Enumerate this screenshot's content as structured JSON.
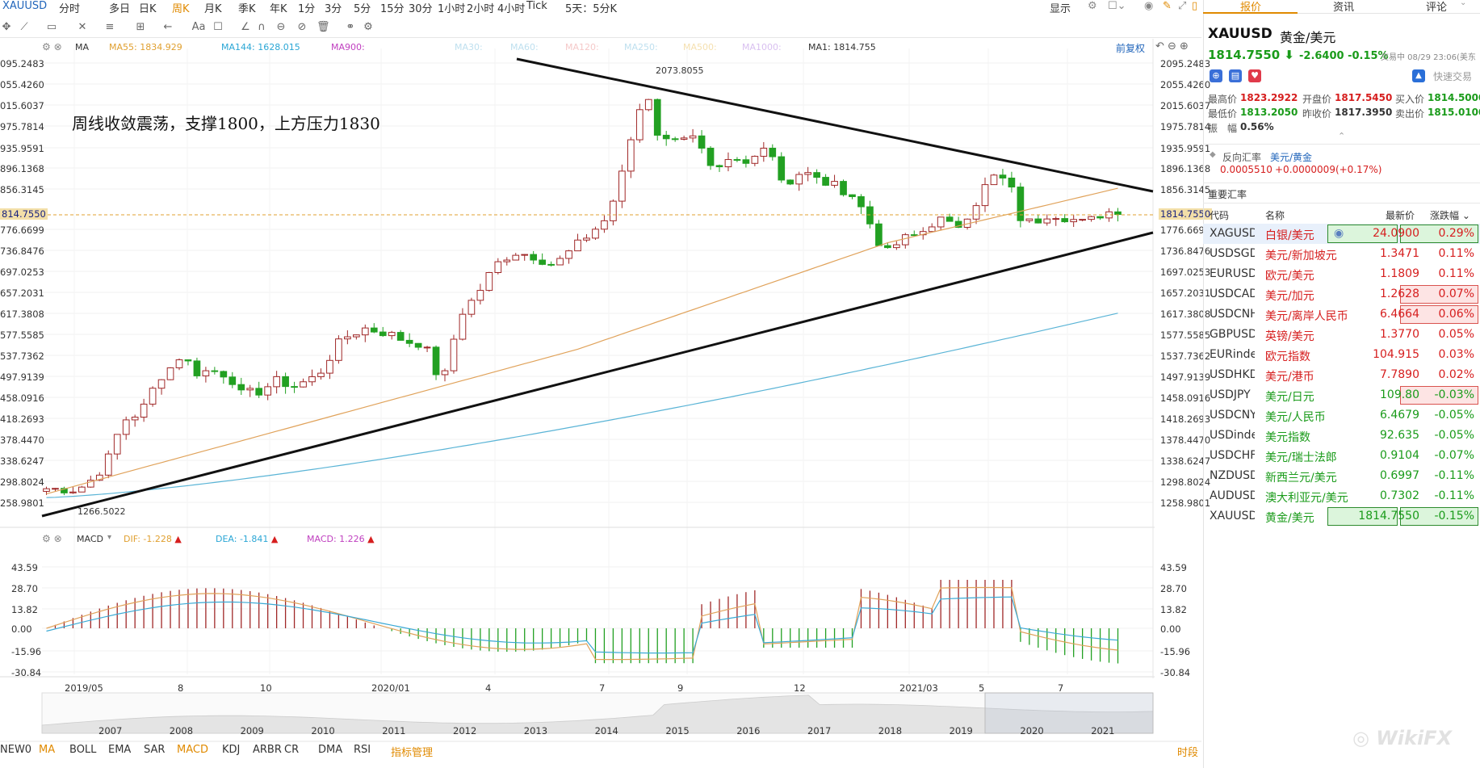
{
  "toolbar": {
    "symbol": "XAUUSD",
    "periods": [
      "分时",
      "多日",
      "日K",
      "周K",
      "月K",
      "季K",
      "年K",
      "1分",
      "3分",
      "5分",
      "15分",
      "30分",
      "1小时",
      "2小时",
      "4小时",
      "Tick",
      "5天：5分K"
    ],
    "active_period": "周K",
    "display_label": "显示"
  },
  "main_chart": {
    "indicator": "MA",
    "ma_legend": [
      {
        "label": "MA55: 1834.929",
        "color": "#e0a030"
      },
      {
        "label": "MA144: 1628.015",
        "color": "#2aa6d5"
      },
      {
        "label": "MA900:",
        "color": "#c040c0"
      },
      {
        "label": "MA30:",
        "color": "#bfe0ef"
      },
      {
        "label": "MA60:",
        "color": "#bfe0ef"
      },
      {
        "label": "MA120:",
        "color": "#f5c9c9"
      },
      {
        "label": "MA250:",
        "color": "#bfe0ef"
      },
      {
        "label": "MA500:",
        "color": "#f5e0b0"
      },
      {
        "label": "MA1000:",
        "color": "#d9c0f0"
      },
      {
        "label": "MA1: 1814.755",
        "color": "#333333"
      }
    ],
    "restore_label": "前复权",
    "annotation": "周线收敛震荡，支撑1800，上方压力1830",
    "high_label": "2073.8055",
    "low_label": "1266.5022",
    "current_price": "1814.7550",
    "y_ticks": [
      "2095.2483",
      "2055.4260",
      "2015.6037",
      "1975.7814",
      "1935.9591",
      "1896.1368",
      "1856.3145",
      "1776.6699",
      "1736.8476",
      "1697.0253",
      "1657.2031",
      "1617.3808",
      "1577.5585",
      "1537.7362",
      "1497.9139",
      "1458.0916",
      "1418.2693",
      "1378.4470",
      "1338.6247",
      "1298.8024",
      "1258.9801"
    ],
    "y_ticks_left": [
      "095.2483",
      "055.4260",
      "015.6037",
      "975.7814",
      "935.9591",
      "896.1368",
      "856.3145",
      "776.6699",
      "736.8476",
      "697.0253",
      "657.2031",
      "617.3808",
      "577.5585",
      "537.7362",
      "497.9139",
      "458.0916",
      "418.2693",
      "378.4470",
      "338.6247",
      "298.8024",
      "258.9801"
    ],
    "current_left": "814.7550"
  },
  "macd": {
    "name": "MACD",
    "dif": "DIF: -1.228",
    "dea": "DEA: -1.841",
    "macd": "MACD: 1.226",
    "y_ticks": [
      "43.59",
      "28.70",
      "13.82",
      "0.00",
      "-15.96",
      "-30.84"
    ]
  },
  "x_axis": [
    "2019/05",
    "8",
    "10",
    "2020/01",
    "4",
    "7",
    "9",
    "12",
    "2021/03",
    "5",
    "7"
  ],
  "overview_years": [
    "2007",
    "2008",
    "2009",
    "2010",
    "2011",
    "2012",
    "2013",
    "2014",
    "2015",
    "2016",
    "2017",
    "2018",
    "2019",
    "2020",
    "2021"
  ],
  "bottom_tabs": [
    "NEW0",
    "MA",
    "BOLL",
    "EMA",
    "SAR",
    "MACD",
    "KDJ",
    "ARBR",
    "CR",
    "DMA",
    "RSI",
    "指标管理"
  ],
  "bottom_right": "时段",
  "right_panel": {
    "tabs": [
      "报价",
      "资讯",
      "评论"
    ],
    "symbol": "XAUUSD",
    "name": "黄金/美元",
    "price": "1814.7550",
    "change": "-2.6400",
    "change_pct": "-0.15%",
    "status": "交易中 08/29 23:06(美东",
    "quick_trade": "快速交易",
    "stats": [
      {
        "k": "最高价",
        "v": "1823.2922",
        "c": "red"
      },
      {
        "k": "开盘价",
        "v": "1817.5450",
        "c": "red"
      },
      {
        "k": "买入价",
        "v": "1814.5000",
        "c": "grn"
      },
      {
        "k": "最低价",
        "v": "1813.2050",
        "c": "grn"
      },
      {
        "k": "昨收价",
        "v": "1817.3950",
        "c": "dark"
      },
      {
        "k": "卖出价",
        "v": "1815.0100",
        "c": "grn"
      }
    ],
    "amplitude_label": "振　幅",
    "amplitude": "0.56%",
    "reverse_label": "反向汇率",
    "reverse_pair": "美元/黄金",
    "reverse_value": "0.0005510",
    "reverse_change": "+0.0000009(+0.17%)",
    "fx_title": "重要汇率",
    "table_headers": [
      "代码",
      "名称",
      "最新价",
      "涨跌幅"
    ],
    "rows": [
      {
        "code": "XAGUSD",
        "name": "白银/美元",
        "price": "24.0900",
        "pct": "0.29%",
        "dir": "up",
        "box": "g"
      },
      {
        "code": "USDSGD",
        "name": "美元/新加坡元",
        "price": "1.3471",
        "pct": "0.11%",
        "dir": "up",
        "box": ""
      },
      {
        "code": "EURUSD",
        "name": "欧元/美元",
        "price": "1.1809",
        "pct": "0.11%",
        "dir": "up",
        "box": ""
      },
      {
        "code": "USDCAD",
        "name": "美元/加元",
        "price": "1.2628",
        "pct": "0.07%",
        "dir": "up",
        "box": "r"
      },
      {
        "code": "USDCNH",
        "name": "美元/离岸人民币",
        "price": "6.4664",
        "pct": "0.06%",
        "dir": "up",
        "box": "r"
      },
      {
        "code": "GBPUSD",
        "name": "英镑/美元",
        "price": "1.3770",
        "pct": "0.05%",
        "dir": "up",
        "box": ""
      },
      {
        "code": "EURindex",
        "name": "欧元指数",
        "price": "104.915",
        "pct": "0.03%",
        "dir": "up",
        "box": ""
      },
      {
        "code": "USDHKD",
        "name": "美元/港币",
        "price": "7.7890",
        "pct": "0.02%",
        "dir": "up",
        "box": ""
      },
      {
        "code": "USDJPY",
        "name": "美元/日元",
        "price": "109.80",
        "pct": "-0.03%",
        "dir": "dn",
        "box": "r"
      },
      {
        "code": "USDCNY",
        "name": "美元/人民币",
        "price": "6.4679",
        "pct": "-0.05%",
        "dir": "dn",
        "box": ""
      },
      {
        "code": "USDindex",
        "name": "美元指数",
        "price": "92.635",
        "pct": "-0.05%",
        "dir": "dn",
        "box": ""
      },
      {
        "code": "USDCHF",
        "name": "美元/瑞士法郎",
        "price": "0.9104",
        "pct": "-0.07%",
        "dir": "dn",
        "box": ""
      },
      {
        "code": "NZDUSD",
        "name": "新西兰元/美元",
        "price": "0.6997",
        "pct": "-0.11%",
        "dir": "dn",
        "box": ""
      },
      {
        "code": "AUDUSD",
        "name": "澳大利亚元/美元",
        "price": "0.7302",
        "pct": "-0.11%",
        "dir": "dn",
        "box": ""
      },
      {
        "code": "XAUUSD",
        "name": "黄金/美元",
        "price": "1814.7550",
        "pct": "-0.15%",
        "dir": "dn",
        "box": "g"
      }
    ]
  },
  "colors": {
    "up": "#d61e1e",
    "down": "#1a9b1a",
    "candle_up": "#a02828",
    "candle_down": "#22a022",
    "ma55": "#e0a25a",
    "ma144": "#5ab4d6",
    "accent": "#e08a00"
  },
  "chart_data": {
    "type": "candlestick",
    "title": "",
    "xlabel": "",
    "ylabel": "",
    "ylim": [
      1258.9801,
      2095.2483
    ],
    "high": 2073.8055,
    "low": 1266.5022,
    "last": 1814.755,
    "ma_legend_values": {
      "MA55": 1834.929,
      "MA144": 1628.015,
      "MA1": 1814.755
    },
    "macd_legend_values": {
      "DIF": -1.228,
      "DEA": -1.841,
      "MACD": 1.226
    },
    "macd_ylim": [
      -30.84,
      43.59
    ]
  }
}
